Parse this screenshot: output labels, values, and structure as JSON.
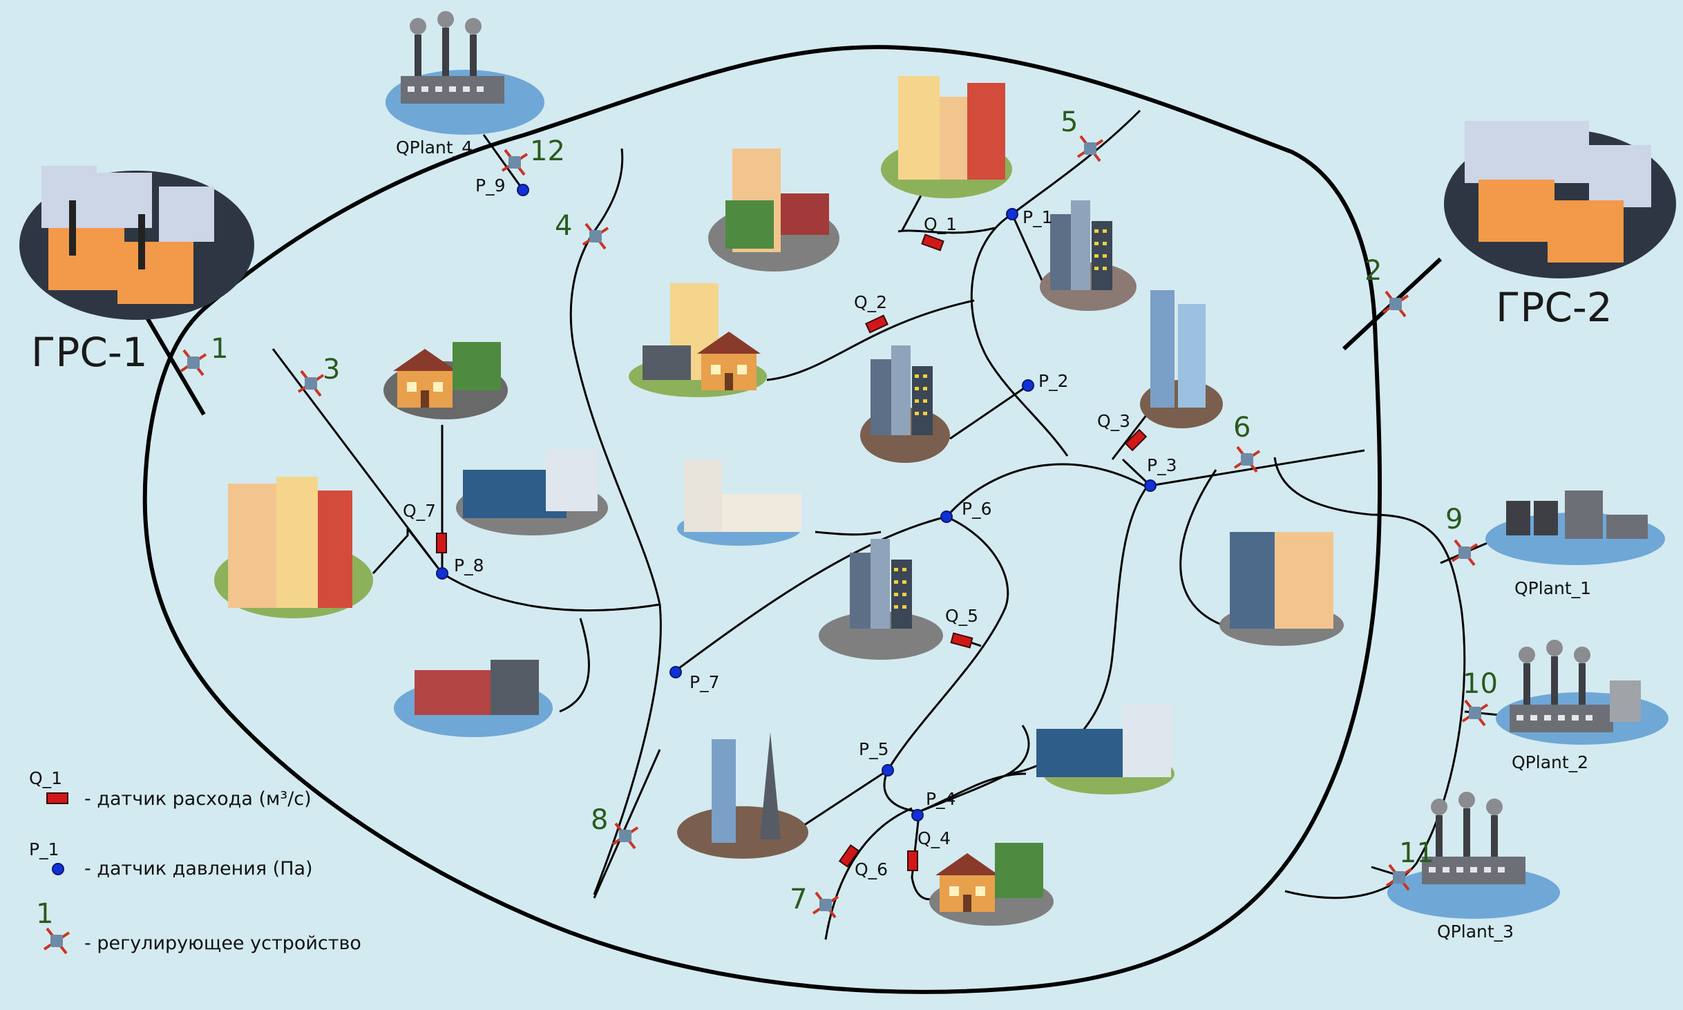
{
  "stations": {
    "grs1": "ГРС-1",
    "grs2": "ГРС-2"
  },
  "plants": {
    "p1": "QPlant_1",
    "p2": "QPlant_2",
    "p3": "QPlant_3",
    "p4": "QPlant_4"
  },
  "pressure_sensors": {
    "p1": "P_1",
    "p2": "P_2",
    "p3": "P_3",
    "p4": "P_4",
    "p5": "P_5",
    "p6": "P_6",
    "p7": "P_7",
    "p8": "P_8",
    "p9": "P_9"
  },
  "flow_sensors": {
    "q1": "Q_1",
    "q2": "Q_2",
    "q3": "Q_3",
    "q4": "Q_4",
    "q5": "Q_5",
    "q6": "Q_6",
    "q7": "Q_7"
  },
  "regulators": {
    "r1": "1",
    "r2": "2",
    "r3": "3",
    "r4": "4",
    "r5": "5",
    "r6": "6",
    "r7": "7",
    "r8": "8",
    "r9": "9",
    "r10": "10",
    "r11": "11",
    "r12": "12"
  },
  "legend": {
    "flow_symbol": "Q_1",
    "flow_text": "- датчик расхода (м³/с)",
    "pressure_symbol": "P_1",
    "pressure_text": "- датчик давления (Па)",
    "regulator_symbol": "1",
    "regulator_text": "- регулирующее устройство"
  },
  "colors": {
    "background": "#d2eaf0",
    "pipe": "#000000",
    "pressure_sensor": "#1030d8",
    "flow_sensor": "#d01818",
    "regulator_label": "#2b5a1e"
  }
}
